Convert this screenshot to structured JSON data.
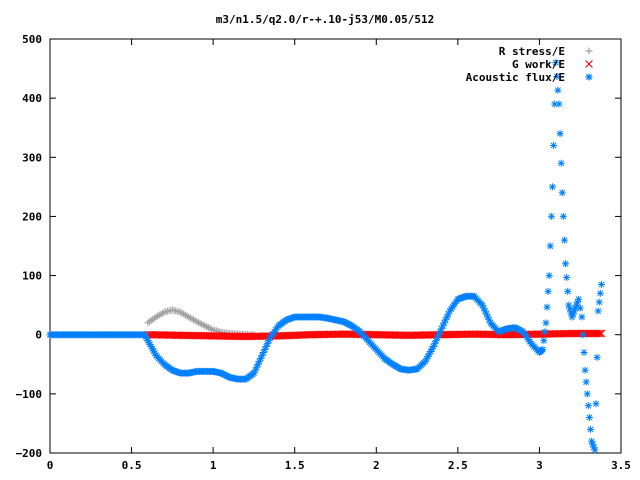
{
  "chart_data": {
    "type": "scatter",
    "title": "m3/n1.5/q2.0/r-+.10-j53/M0.05/512",
    "xlabel": "",
    "ylabel": "",
    "xlim": [
      0,
      3.5
    ],
    "ylim": [
      -200,
      500
    ],
    "x_ticks": [
      "0",
      "0.5",
      "1",
      "1.5",
      "2",
      "2.5",
      "3",
      "3.5"
    ],
    "y_ticks": [
      "500",
      "400",
      "300",
      "200",
      "100",
      "0",
      "−100",
      "−200"
    ],
    "x_tick_values": [
      0,
      0.5,
      1,
      1.5,
      2,
      2.5,
      3,
      3.5
    ],
    "y_tick_values": [
      500,
      400,
      300,
      200,
      100,
      0,
      -100,
      -200
    ],
    "grid": false,
    "legend_position": "top-right",
    "series": [
      {
        "name": "R stress/E",
        "marker": "plus",
        "color": "#a0a0a0",
        "x": [
          0.6,
          0.65,
          0.7,
          0.75,
          0.8,
          0.85,
          0.9,
          0.95,
          1.0,
          1.05,
          1.1,
          1.15,
          1.2,
          1.25
        ],
        "y": [
          20,
          30,
          38,
          42,
          38,
          30,
          22,
          15,
          8,
          4,
          2,
          1,
          0,
          0
        ]
      },
      {
        "name": "G work/E",
        "marker": "cross",
        "color": "#ff0000",
        "x": [
          0.6,
          0.8,
          1.0,
          1.2,
          1.4,
          1.6,
          1.8,
          2.0,
          2.2,
          2.4,
          2.6,
          2.8,
          3.0,
          3.2,
          3.38
        ],
        "y": [
          0,
          -1,
          -2,
          -3,
          -2,
          0,
          1,
          0,
          -1,
          0,
          1,
          0,
          1,
          2,
          2
        ]
      },
      {
        "name": "Acoustic flux/E",
        "marker": "star",
        "color": "#0080ff",
        "x": [
          0.0,
          0.1,
          0.2,
          0.3,
          0.4,
          0.5,
          0.58,
          0.6,
          0.62,
          0.65,
          0.7,
          0.75,
          0.8,
          0.85,
          0.9,
          0.95,
          1.0,
          1.05,
          1.1,
          1.15,
          1.2,
          1.25,
          1.3,
          1.35,
          1.4,
          1.45,
          1.5,
          1.55,
          1.6,
          1.65,
          1.7,
          1.75,
          1.8,
          1.85,
          1.9,
          1.95,
          2.0,
          2.05,
          2.1,
          2.15,
          2.2,
          2.25,
          2.3,
          2.35,
          2.4,
          2.45,
          2.5,
          2.55,
          2.6,
          2.65,
          2.7,
          2.75,
          2.8,
          2.85,
          2.9,
          2.95,
          3.0,
          3.02,
          3.04,
          3.06,
          3.08,
          3.1,
          3.12,
          3.14,
          3.16,
          3.18,
          3.2,
          3.22,
          3.24,
          3.26,
          3.28,
          3.3,
          3.32,
          3.34,
          3.36,
          3.38
        ],
        "y": [
          0,
          0,
          0,
          0,
          0,
          0,
          0,
          -10,
          -20,
          -35,
          -50,
          -60,
          -65,
          -65,
          -62,
          -62,
          -62,
          -65,
          -72,
          -75,
          -75,
          -65,
          -35,
          -5,
          15,
          25,
          30,
          30,
          30,
          30,
          28,
          25,
          22,
          15,
          5,
          -10,
          -25,
          -40,
          -50,
          -58,
          -60,
          -58,
          -45,
          -20,
          10,
          40,
          60,
          65,
          65,
          50,
          20,
          5,
          10,
          12,
          5,
          -15,
          -30,
          -25,
          20,
          100,
          250,
          460,
          390,
          240,
          120,
          50,
          30,
          45,
          60,
          30,
          -60,
          -120,
          -180,
          -195,
          40,
          85
        ]
      }
    ]
  }
}
